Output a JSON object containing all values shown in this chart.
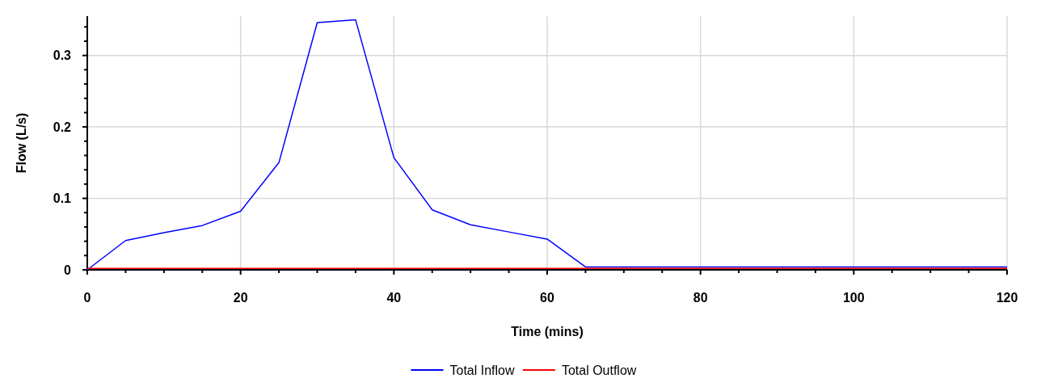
{
  "chart_data": {
    "type": "line",
    "xlabel": "Time (mins)",
    "ylabel": "Flow (L/s)",
    "x": [
      0,
      5,
      10,
      15,
      20,
      25,
      30,
      35,
      40,
      45,
      50,
      55,
      60,
      65,
      70,
      75,
      80,
      85,
      90,
      95,
      100,
      105,
      110,
      115,
      120
    ],
    "series": [
      {
        "name": "Total Inflow",
        "color": "#0000ff",
        "values": [
          0,
          0.041,
          0.052,
          0.062,
          0.082,
          0.15,
          0.346,
          0.35,
          0.157,
          0.084,
          0.063,
          0.053,
          0.043,
          0.004,
          0.004,
          0.004,
          0.004,
          0.004,
          0.004,
          0.004,
          0.004,
          0.004,
          0.004,
          0.004,
          0.004
        ]
      },
      {
        "name": "Total Outflow",
        "color": "#ff0000",
        "values": [
          0.002,
          0.002,
          0.002,
          0.002,
          0.002,
          0.002,
          0.002,
          0.002,
          0.002,
          0.002,
          0.002,
          0.002,
          0.002,
          0.002,
          0.002,
          0.002,
          0.002,
          0.002,
          0.002,
          0.002,
          0.002,
          0.002,
          0.002,
          0.002,
          0.002
        ]
      }
    ],
    "xlim": [
      0,
      120
    ],
    "xticks": [
      0,
      {
        "value": 5,
        "label": null
      },
      {
        "value": 10,
        "label": null
      },
      {
        "value": 15,
        "label": null
      },
      20,
      {
        "value": 25,
        "label": null
      },
      {
        "value": 30,
        "label": null
      },
      {
        "value": 35,
        "label": null
      },
      40,
      {
        "value": 45,
        "label": null
      },
      {
        "value": 50,
        "label": null
      },
      {
        "value": 55,
        "label": null
      },
      60,
      {
        "value": 65,
        "label": null
      },
      {
        "value": 70,
        "label": null
      },
      {
        "value": 75,
        "label": null
      },
      80,
      {
        "value": 85,
        "label": null
      },
      {
        "value": 90,
        "label": null
      },
      {
        "value": 95,
        "label": null
      },
      100,
      {
        "value": 105,
        "label": null
      },
      {
        "value": 110,
        "label": null
      },
      {
        "value": 115,
        "label": null
      },
      120
    ],
    "ylim": [
      0,
      0.355
    ],
    "yticks": [
      0,
      {
        "value": 0.02,
        "label": null
      },
      {
        "value": 0.04,
        "label": null
      },
      {
        "value": 0.06,
        "label": null
      },
      {
        "value": 0.08,
        "label": null
      },
      0.1,
      {
        "value": 0.12,
        "label": null
      },
      {
        "value": 0.14,
        "label": null
      },
      {
        "value": 0.16,
        "label": null
      },
      {
        "value": 0.18,
        "label": null
      },
      0.2,
      {
        "value": 0.22,
        "label": null
      },
      {
        "value": 0.24,
        "label": null
      },
      {
        "value": 0.26,
        "label": null
      },
      {
        "value": 0.28,
        "label": null
      },
      0.3,
      {
        "value": 0.32,
        "label": null
      },
      {
        "value": 0.34,
        "label": null
      }
    ],
    "grid": true,
    "legend": "bottom",
    "marker": "none",
    "line_style": "solid"
  }
}
